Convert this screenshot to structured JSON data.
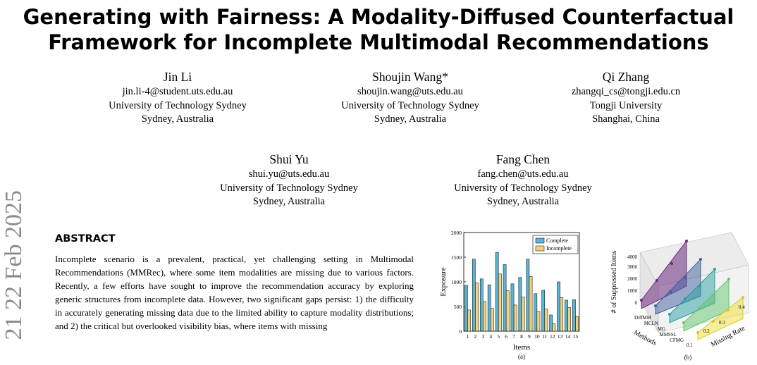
{
  "paper": {
    "title_line1": "Generating with Fairness: A Modality-Diffused Counterfactual",
    "title_line2": "Framework for Incomplete Multimodal Recommendations",
    "arxiv_side": "21  22 Feb 2025",
    "authors": [
      {
        "name": "Jin Li",
        "email": "jin.li-4@student.uts.edu.au",
        "affiliation": "University of Technology Sydney",
        "location": "Sydney, Australia"
      },
      {
        "name": "Shoujin Wang*",
        "email": "shoujin.wang@uts.edu.au",
        "affiliation": "University of Technology Sydney",
        "location": "Sydney, Australia"
      },
      {
        "name": "Qi Zhang",
        "email": "zhangqi_cs@tongji.edu.cn",
        "affiliation": "Tongji University",
        "location": "Shanghai, China"
      },
      {
        "name": "Shui Yu",
        "email": "shui.yu@uts.edu.au",
        "affiliation": "University of Technology Sydney",
        "location": "Sydney, Australia"
      },
      {
        "name": "Fang Chen",
        "email": "fang.chen@uts.edu.au",
        "affiliation": "University of Technology Sydney",
        "location": "Sydney, Australia"
      }
    ],
    "abstract_heading": "ABSTRACT",
    "abstract_text": "Incomplete scenario is a prevalent, practical, yet challenging setting in Multimodal Recommendations (MMRec), where some item modalities are missing due to various factors. Recently, a few efforts have sought to improve the recommendation accuracy by exploring generic structures from incomplete data. However, two significant gaps persist: 1) the difficulty in accurately generating missing data due to the limited ability to capture modality distributions; and 2) the critical but overlooked visibility bias, where items with missing"
  },
  "chart_data": [
    {
      "type": "bar",
      "xlabel": "Items",
      "ylabel": "Exposure",
      "caption": "(a)",
      "ylim": [
        0,
        2000
      ],
      "yticks": [
        0,
        500,
        1000,
        1500,
        2000
      ],
      "categories": [
        "1",
        "2",
        "3",
        "4",
        "5",
        "6",
        "7",
        "8",
        "9",
        "10",
        "11",
        "12",
        "13",
        "14",
        "15"
      ],
      "legend_position": "top-right",
      "series": [
        {
          "name": "Complete",
          "color": "#5ab4d6",
          "values": [
            930,
            1460,
            1060,
            940,
            1600,
            1350,
            960,
            1090,
            1460,
            760,
            830,
            330,
            1000,
            630,
            640
          ]
        },
        {
          "name": "Incomplete",
          "color": "#f5d27a",
          "values": [
            430,
            980,
            600,
            460,
            1160,
            820,
            530,
            690,
            1110,
            400,
            450,
            150,
            680,
            480,
            300
          ]
        }
      ]
    },
    {
      "type": "3d-area",
      "zlabel": "# of Suppressed Items",
      "xlabel": "Missing Rate",
      "ylabel": "Methods",
      "caption": "(b)",
      "zticks": [
        "0",
        "1000",
        "2000",
        "3000",
        "4000"
      ],
      "xticks": [
        "0.1",
        "0.2",
        "0.3",
        "0.4"
      ],
      "methods": [
        "DiffMM",
        "MCLN",
        "MG",
        "MMSSL",
        "CFMG"
      ],
      "colors": [
        "#6a2a7e",
        "#3f5e9c",
        "#2a9d9f",
        "#62c66b",
        "#f0e244"
      ]
    }
  ]
}
